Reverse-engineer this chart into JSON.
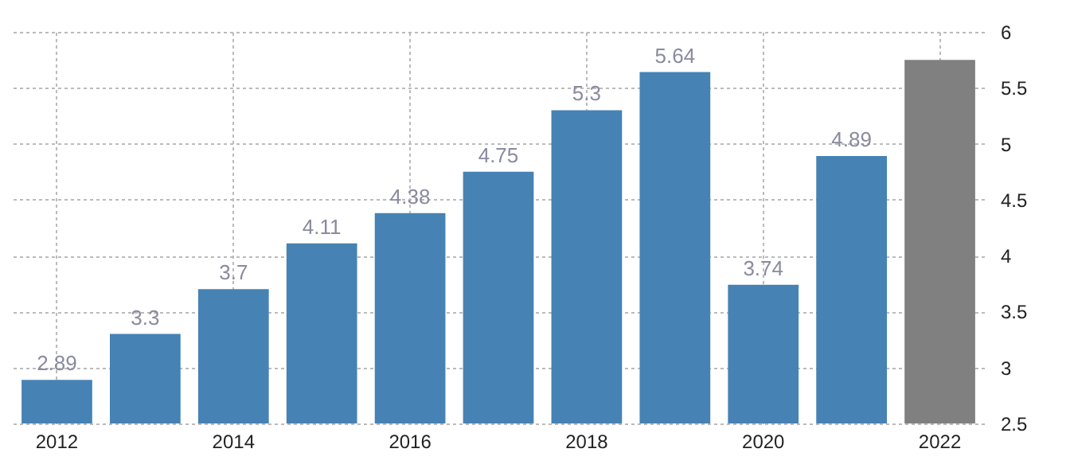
{
  "chart_data": {
    "type": "bar",
    "categories": [
      "2012",
      null,
      "2014",
      null,
      "2016",
      null,
      "2018",
      null,
      "2020",
      null,
      "2022"
    ],
    "values": [
      2.89,
      3.3,
      3.7,
      4.11,
      4.38,
      4.75,
      5.3,
      5.64,
      3.74,
      4.89,
      5.75
    ],
    "value_labels": [
      "2.89",
      "3.3",
      "3.7",
      "4.11",
      "4.38",
      "4.75",
      "5.3",
      "5.64",
      "3.74",
      "4.89",
      null
    ],
    "colors": [
      "#4682b4",
      "#4682b4",
      "#4682b4",
      "#4682b4",
      "#4682b4",
      "#4682b4",
      "#4682b4",
      "#4682b4",
      "#4682b4",
      "#4682b4",
      "#808080"
    ],
    "ylim": [
      2.5,
      6
    ],
    "yticks": [
      2.5,
      3,
      3.5,
      4,
      4.5,
      5,
      5.5,
      6
    ],
    "grid": true
  }
}
